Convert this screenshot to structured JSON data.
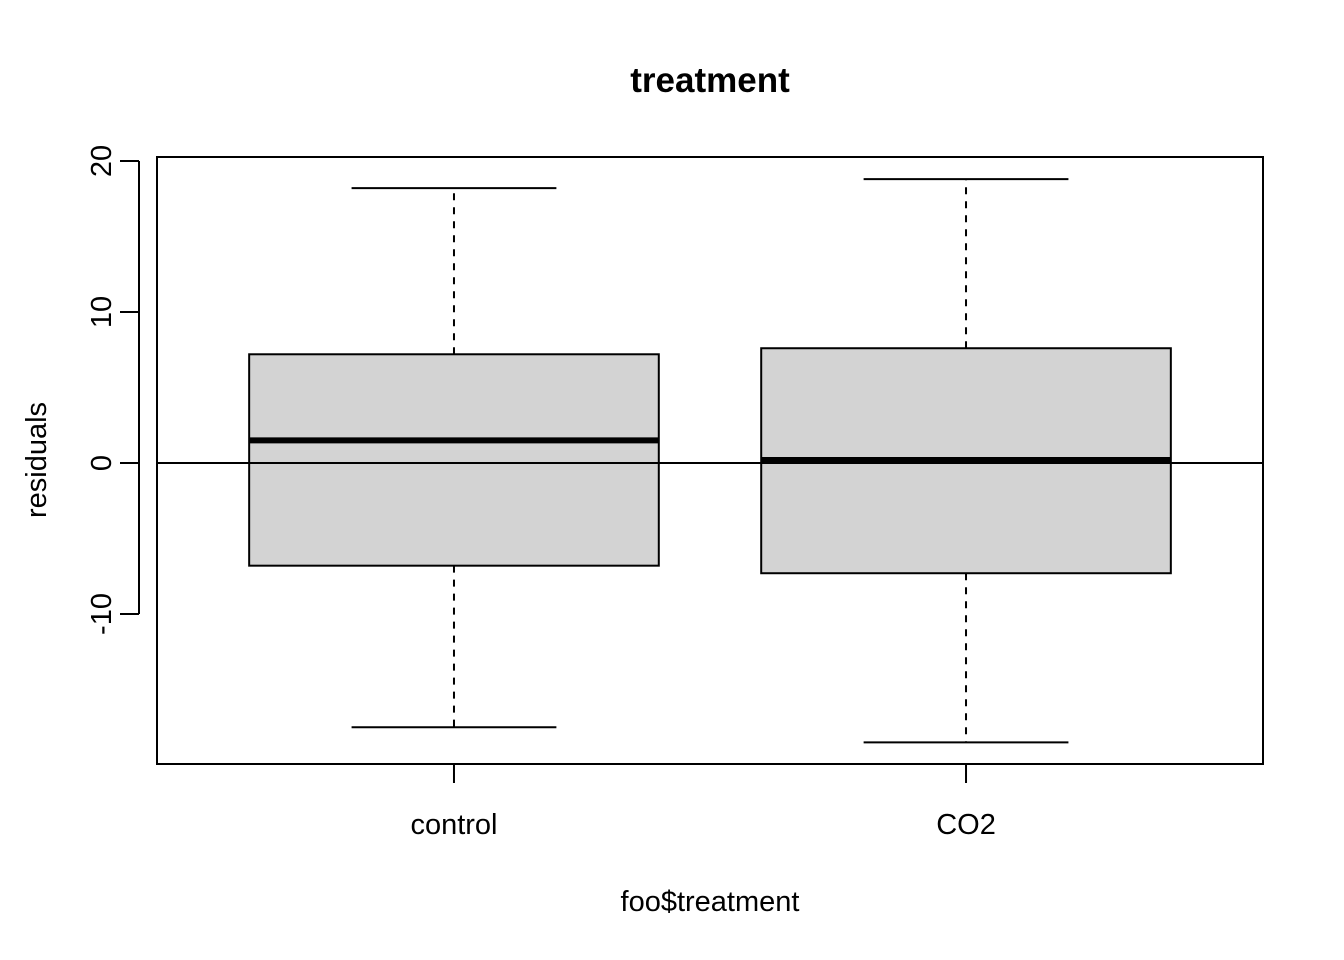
{
  "chart_data": {
    "type": "boxplot",
    "title": "treatment",
    "xlabel": "foo$treatment",
    "ylabel": "residuals",
    "categories": [
      "control",
      "CO2"
    ],
    "boxes": [
      {
        "category": "control",
        "min": -17.5,
        "q1": -6.8,
        "median": 1.5,
        "q3": 7.2,
        "max": 18.2
      },
      {
        "category": "CO2",
        "min": -18.5,
        "q1": -7.3,
        "median": 0.2,
        "q3": 7.6,
        "max": 18.8
      }
    ],
    "ylim": [
      -20,
      20
    ],
    "yticks": [
      -10,
      0,
      10,
      20
    ],
    "reference_line": 0,
    "box_fill": "#d3d3d3",
    "grid": false,
    "legend": "none"
  }
}
